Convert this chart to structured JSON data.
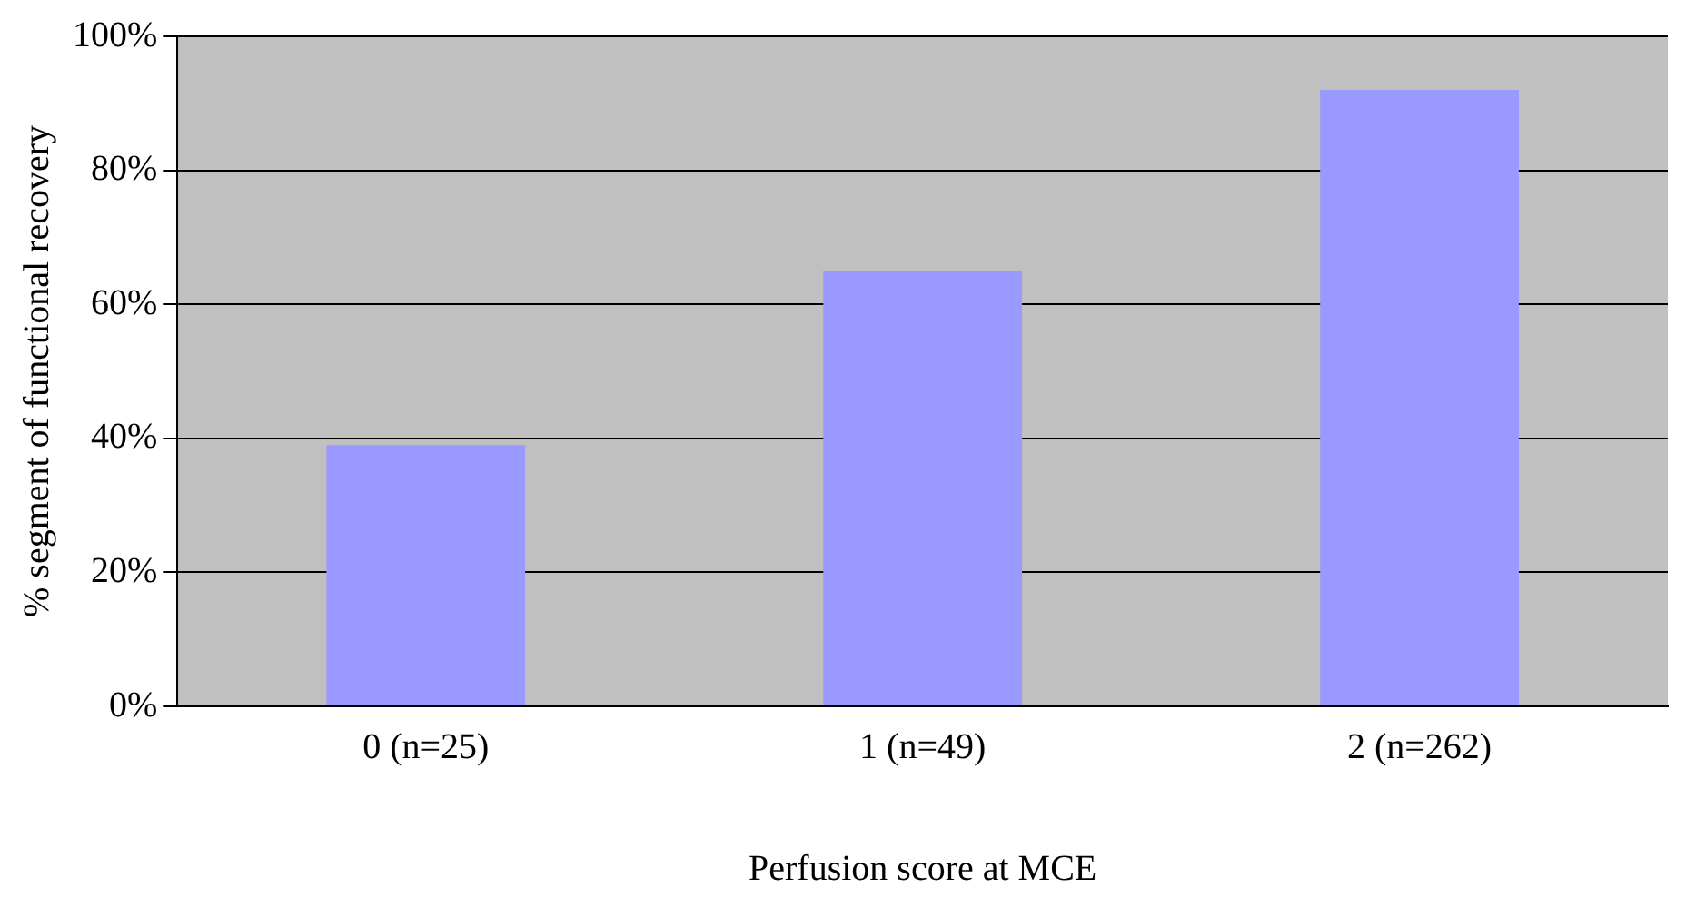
{
  "chart_data": {
    "type": "bar",
    "xlabel": "Perfusion score at MCE",
    "ylabel": "% segment of functional recovery",
    "categories": [
      "0 (n=25)",
      "1 (n=49)",
      "2 (n=262)"
    ],
    "values": [
      39,
      65,
      92
    ],
    "color": "#9999ff",
    "ylim": [
      0,
      100
    ],
    "yticks": [
      {
        "value": 0,
        "label": "0%"
      },
      {
        "value": 20,
        "label": "20%"
      },
      {
        "value": 40,
        "label": "40%"
      },
      {
        "value": 60,
        "label": "60%"
      },
      {
        "value": 80,
        "label": "80%"
      },
      {
        "value": 100,
        "label": "100%"
      }
    ],
    "grid": "y",
    "legend": false
  }
}
